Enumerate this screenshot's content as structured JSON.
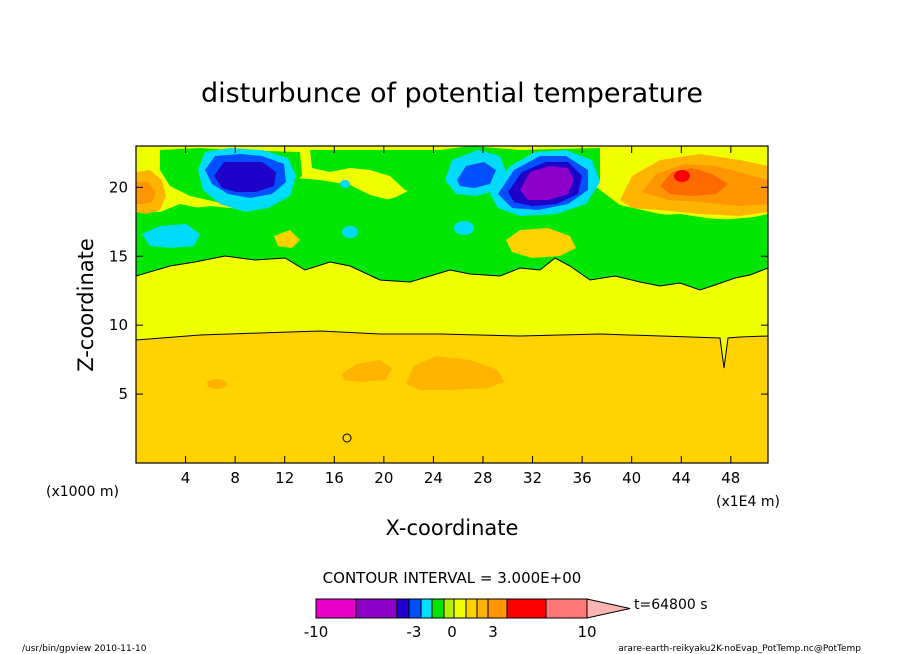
{
  "chart_data": {
    "type": "heatmap",
    "title": "disturbunce of potential temperature",
    "xlabel": "X-coordinate",
    "ylabel": "Z-coordinate",
    "x_unit_left": "(x1000 m)",
    "x_unit_right": "(x1E4 m)",
    "x_ticks": [
      "4",
      "8",
      "12",
      "16",
      "20",
      "24",
      "28",
      "32",
      "36",
      "40",
      "44",
      "48"
    ],
    "x_tick_values": [
      4,
      8,
      12,
      16,
      20,
      24,
      28,
      32,
      36,
      40,
      44,
      48
    ],
    "y_ticks": [
      "5",
      "10",
      "15",
      "20"
    ],
    "y_tick_values": [
      5,
      10,
      15,
      20
    ],
    "xlim": [
      0,
      51
    ],
    "ylim": [
      0,
      23
    ],
    "contour_interval_text": "CONTOUR INTERVAL = 3.000E+00",
    "time_text": "t=64800 s",
    "colorbar": {
      "labels": [
        "-10",
        "-3",
        "0",
        "3",
        "10"
      ],
      "label_values": [
        -10,
        -3,
        0,
        3,
        10
      ],
      "colors": [
        "#e800c8",
        "#8c00c8",
        "#1e00c8",
        "#0050ff",
        "#00dcff",
        "#00e600",
        "#b4f000",
        "#f0ff00",
        "#ffd200",
        "#ffb400",
        "#ff9600",
        "#ff0000",
        "#ff7878",
        "#ffb4b4"
      ]
    },
    "bands": [
      {
        "z_range": [
          0,
          9.5
        ],
        "level": "ochre"
      },
      {
        "z_range": [
          9.5,
          13.5
        ],
        "level": "yellow"
      },
      {
        "z_range": [
          13.5,
          18.5
        ],
        "level": "green"
      },
      {
        "z_range": [
          18.5,
          23
        ],
        "level": "mixed"
      }
    ]
  },
  "footer": {
    "left": "/usr/bin/gpview   2010-11-10",
    "right": "arare-earth-reikyaku2K-noEvap_PotTemp.nc@PotTemp"
  }
}
